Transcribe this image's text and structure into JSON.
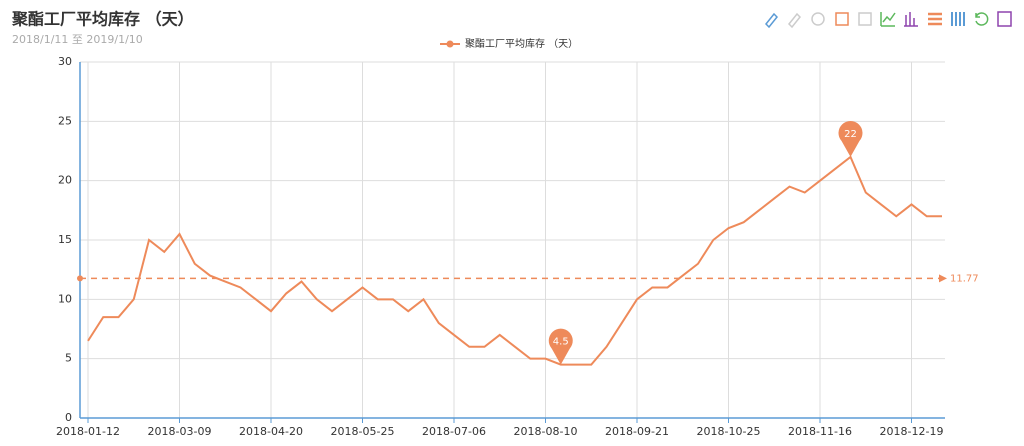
{
  "chart_data": {
    "type": "line",
    "title": "聚酯工厂平均库存 （天）",
    "subtitle": "2018/1/11 至 2019/1/10",
    "categories": [
      "2018-01-12",
      null,
      null,
      null,
      null,
      null,
      "2018-03-09",
      null,
      null,
      null,
      null,
      null,
      "2018-04-20",
      null,
      null,
      null,
      null,
      null,
      "2018-05-25",
      null,
      null,
      null,
      null,
      null,
      "2018-07-06",
      null,
      null,
      null,
      null,
      null,
      "2018-08-10",
      null,
      null,
      null,
      null,
      null,
      "2018-09-21",
      null,
      null,
      null,
      null,
      null,
      "2018-10-25",
      null,
      null,
      null,
      null,
      null,
      "2018-11-16",
      null,
      null,
      null,
      null,
      null,
      "2018-12-19",
      null,
      null
    ],
    "series": [
      {
        "name": "聚酯工厂平均库存 （天）",
        "color": "#ee8a5a",
        "values": [
          6.5,
          8.5,
          8.5,
          10,
          15,
          14,
          15.5,
          13,
          12,
          11.5,
          11,
          10,
          9,
          10.5,
          11.5,
          10,
          9,
          10,
          11,
          10,
          10,
          9,
          10,
          8,
          7,
          6,
          6,
          7,
          6,
          5,
          5,
          4.5,
          4.5,
          4.5,
          6,
          8,
          10,
          11,
          11,
          12,
          13,
          15,
          16,
          16.5,
          17.5,
          18.5,
          19.5,
          19,
          20,
          21,
          22,
          19,
          18,
          17,
          18,
          17,
          17
        ]
      }
    ],
    "average_line": 11.77,
    "ylim": [
      0,
      30
    ],
    "yticks": [
      0,
      5,
      10,
      15,
      20,
      25,
      30
    ],
    "grid": true
  }
}
